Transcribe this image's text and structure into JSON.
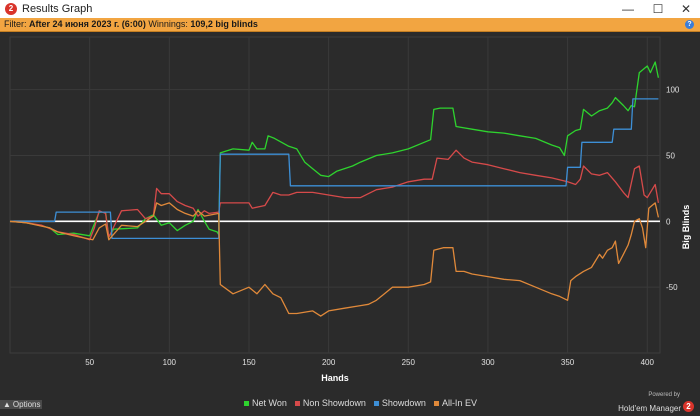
{
  "window": {
    "title": "Results Graph",
    "icon": "hm-logo-icon",
    "controls": [
      "—",
      "☐",
      "✕"
    ]
  },
  "filter": {
    "label": "Filter:",
    "value": "After 24 июня 2023 г. (6:00)",
    "winnings_label": "Winnings:",
    "winnings_value": "109,2 big blinds",
    "help": "?"
  },
  "options_label": "Options",
  "powered": {
    "line1": "Powered by",
    "brand": "Hold'em Manager",
    "brand_num": "2"
  },
  "colors": {
    "net_won": "#2ed32e",
    "non_showdown": "#d64a4a",
    "showdown": "#3d8fd6",
    "allin_ev": "#e0893a",
    "background": "#2b2b2b",
    "filterbar": "#f2a541"
  },
  "chart_data": {
    "type": "line",
    "xlabel": "Hands",
    "ylabel": "Big Blinds",
    "xlim": [
      0,
      408
    ],
    "ylim": [
      -100,
      140
    ],
    "xticks": [
      50,
      100,
      150,
      200,
      250,
      300,
      350,
      400
    ],
    "yticks": [
      100,
      50,
      0,
      -50
    ],
    "grid": true,
    "legend_position": "bottom",
    "series": [
      {
        "name": "Net Won",
        "color": "#2ed32e",
        "points": [
          [
            0,
            0
          ],
          [
            10,
            -1
          ],
          [
            18,
            -3
          ],
          [
            25,
            -5
          ],
          [
            30,
            -10
          ],
          [
            40,
            -9
          ],
          [
            50,
            -11
          ],
          [
            52,
            -5
          ],
          [
            56,
            7
          ],
          [
            60,
            7
          ],
          [
            62,
            -12
          ],
          [
            65,
            -6
          ],
          [
            80,
            -5
          ],
          [
            85,
            2
          ],
          [
            90,
            5
          ],
          [
            95,
            -3
          ],
          [
            100,
            -1
          ],
          [
            105,
            -7
          ],
          [
            110,
            -3
          ],
          [
            115,
            0
          ],
          [
            118,
            9
          ],
          [
            122,
            0
          ],
          [
            125,
            -6
          ],
          [
            130,
            -8
          ],
          [
            131,
            -10
          ],
          [
            132,
            52
          ],
          [
            140,
            55
          ],
          [
            150,
            54
          ],
          [
            152,
            60
          ],
          [
            155,
            55
          ],
          [
            160,
            55
          ],
          [
            162,
            65
          ],
          [
            166,
            63
          ],
          [
            175,
            57
          ],
          [
            180,
            55
          ],
          [
            185,
            45
          ],
          [
            190,
            40
          ],
          [
            195,
            35
          ],
          [
            200,
            34
          ],
          [
            205,
            38
          ],
          [
            215,
            42
          ],
          [
            220,
            45
          ],
          [
            230,
            50
          ],
          [
            240,
            52
          ],
          [
            250,
            55
          ],
          [
            260,
            60
          ],
          [
            264,
            62
          ],
          [
            266,
            85
          ],
          [
            270,
            86
          ],
          [
            278,
            86
          ],
          [
            280,
            72
          ],
          [
            290,
            70
          ],
          [
            300,
            68
          ],
          [
            310,
            67
          ],
          [
            320,
            65
          ],
          [
            330,
            63
          ],
          [
            340,
            58
          ],
          [
            345,
            56
          ],
          [
            348,
            50
          ],
          [
            350,
            65
          ],
          [
            355,
            69
          ],
          [
            358,
            70
          ],
          [
            360,
            85
          ],
          [
            365,
            80
          ],
          [
            370,
            84
          ],
          [
            375,
            86
          ],
          [
            378,
            90
          ],
          [
            380,
            94
          ],
          [
            385,
            88
          ],
          [
            388,
            84
          ],
          [
            390,
            88
          ],
          [
            392,
            87
          ],
          [
            395,
            113
          ],
          [
            400,
            118
          ],
          [
            402,
            113
          ],
          [
            405,
            121
          ],
          [
            407,
            109
          ]
        ]
      },
      {
        "name": "Non Showdown",
        "color": "#d64a4a",
        "points": [
          [
            0,
            0
          ],
          [
            10,
            -1
          ],
          [
            20,
            -3
          ],
          [
            30,
            -8
          ],
          [
            40,
            -10
          ],
          [
            50,
            -14
          ],
          [
            53,
            -5
          ],
          [
            56,
            8
          ],
          [
            60,
            6
          ],
          [
            62,
            -12
          ],
          [
            70,
            8
          ],
          [
            80,
            9
          ],
          [
            85,
            2
          ],
          [
            90,
            4
          ],
          [
            92,
            25
          ],
          [
            95,
            21
          ],
          [
            100,
            21
          ],
          [
            105,
            15
          ],
          [
            110,
            12
          ],
          [
            115,
            10
          ],
          [
            118,
            4
          ],
          [
            122,
            8
          ],
          [
            125,
            6
          ],
          [
            131,
            7
          ],
          [
            132,
            14
          ],
          [
            140,
            14
          ],
          [
            150,
            14
          ],
          [
            152,
            10
          ],
          [
            160,
            12
          ],
          [
            165,
            22
          ],
          [
            170,
            20
          ],
          [
            175,
            20
          ],
          [
            180,
            22
          ],
          [
            190,
            22
          ],
          [
            200,
            20
          ],
          [
            210,
            18
          ],
          [
            220,
            18
          ],
          [
            230,
            24
          ],
          [
            240,
            26
          ],
          [
            250,
            30
          ],
          [
            260,
            32
          ],
          [
            265,
            32
          ],
          [
            268,
            48
          ],
          [
            275,
            47
          ],
          [
            280,
            54
          ],
          [
            285,
            48
          ],
          [
            290,
            45
          ],
          [
            300,
            43
          ],
          [
            310,
            40
          ],
          [
            320,
            37
          ],
          [
            330,
            35
          ],
          [
            340,
            33
          ],
          [
            350,
            30
          ],
          [
            355,
            28
          ],
          [
            358,
            32
          ],
          [
            360,
            42
          ],
          [
            365,
            36
          ],
          [
            370,
            35
          ],
          [
            375,
            37
          ],
          [
            380,
            30
          ],
          [
            385,
            22
          ],
          [
            388,
            18
          ],
          [
            392,
            40
          ],
          [
            395,
            42
          ],
          [
            398,
            20
          ],
          [
            400,
            18
          ],
          [
            402,
            22
          ],
          [
            405,
            28
          ],
          [
            407,
            14
          ]
        ]
      },
      {
        "name": "Showdown",
        "color": "#3d8fd6",
        "points": [
          [
            0,
            0
          ],
          [
            28,
            0
          ],
          [
            29,
            7
          ],
          [
            55,
            7
          ],
          [
            56,
            7
          ],
          [
            63,
            7
          ],
          [
            64,
            -13
          ],
          [
            130,
            -13
          ],
          [
            131,
            -13
          ],
          [
            132,
            51
          ],
          [
            175,
            51
          ],
          [
            176,
            27
          ],
          [
            348,
            27
          ],
          [
            349,
            27
          ],
          [
            350,
            41
          ],
          [
            358,
            41
          ],
          [
            359,
            60
          ],
          [
            378,
            60
          ],
          [
            379,
            70
          ],
          [
            390,
            70
          ],
          [
            391,
            93
          ],
          [
            407,
            93
          ]
        ]
      },
      {
        "name": "All-In EV",
        "color": "#e0893a",
        "points": [
          [
            0,
            0
          ],
          [
            10,
            -1
          ],
          [
            25,
            -5
          ],
          [
            30,
            -8
          ],
          [
            40,
            -11
          ],
          [
            52,
            -14
          ],
          [
            56,
            -5
          ],
          [
            60,
            -2
          ],
          [
            62,
            -14
          ],
          [
            70,
            -3
          ],
          [
            80,
            -4
          ],
          [
            90,
            4
          ],
          [
            92,
            14
          ],
          [
            95,
            12
          ],
          [
            100,
            14
          ],
          [
            105,
            9
          ],
          [
            110,
            6
          ],
          [
            115,
            4
          ],
          [
            118,
            8
          ],
          [
            122,
            4
          ],
          [
            131,
            6
          ],
          [
            132,
            -48
          ],
          [
            140,
            -55
          ],
          [
            150,
            -50
          ],
          [
            155,
            -55
          ],
          [
            160,
            -48
          ],
          [
            165,
            -55
          ],
          [
            170,
            -58
          ],
          [
            175,
            -70
          ],
          [
            180,
            -70
          ],
          [
            190,
            -68
          ],
          [
            195,
            -72
          ],
          [
            200,
            -68
          ],
          [
            210,
            -66
          ],
          [
            220,
            -64
          ],
          [
            225,
            -63
          ],
          [
            230,
            -60
          ],
          [
            240,
            -50
          ],
          [
            250,
            -50
          ],
          [
            260,
            -48
          ],
          [
            264,
            -46
          ],
          [
            266,
            -22
          ],
          [
            272,
            -20
          ],
          [
            278,
            -20
          ],
          [
            280,
            -38
          ],
          [
            285,
            -38
          ],
          [
            290,
            -40
          ],
          [
            300,
            -42
          ],
          [
            310,
            -44
          ],
          [
            320,
            -45
          ],
          [
            330,
            -50
          ],
          [
            340,
            -55
          ],
          [
            345,
            -57
          ],
          [
            350,
            -60
          ],
          [
            352,
            -45
          ],
          [
            355,
            -42
          ],
          [
            360,
            -38
          ],
          [
            365,
            -35
          ],
          [
            370,
            -25
          ],
          [
            372,
            -28
          ],
          [
            375,
            -22
          ],
          [
            378,
            -20
          ],
          [
            380,
            -15
          ],
          [
            382,
            -32
          ],
          [
            385,
            -25
          ],
          [
            388,
            -18
          ],
          [
            390,
            -10
          ],
          [
            392,
            0
          ],
          [
            395,
            2
          ],
          [
            397,
            -5
          ],
          [
            399,
            -20
          ],
          [
            401,
            10
          ],
          [
            403,
            12
          ],
          [
            405,
            14
          ],
          [
            407,
            3
          ]
        ]
      }
    ]
  }
}
